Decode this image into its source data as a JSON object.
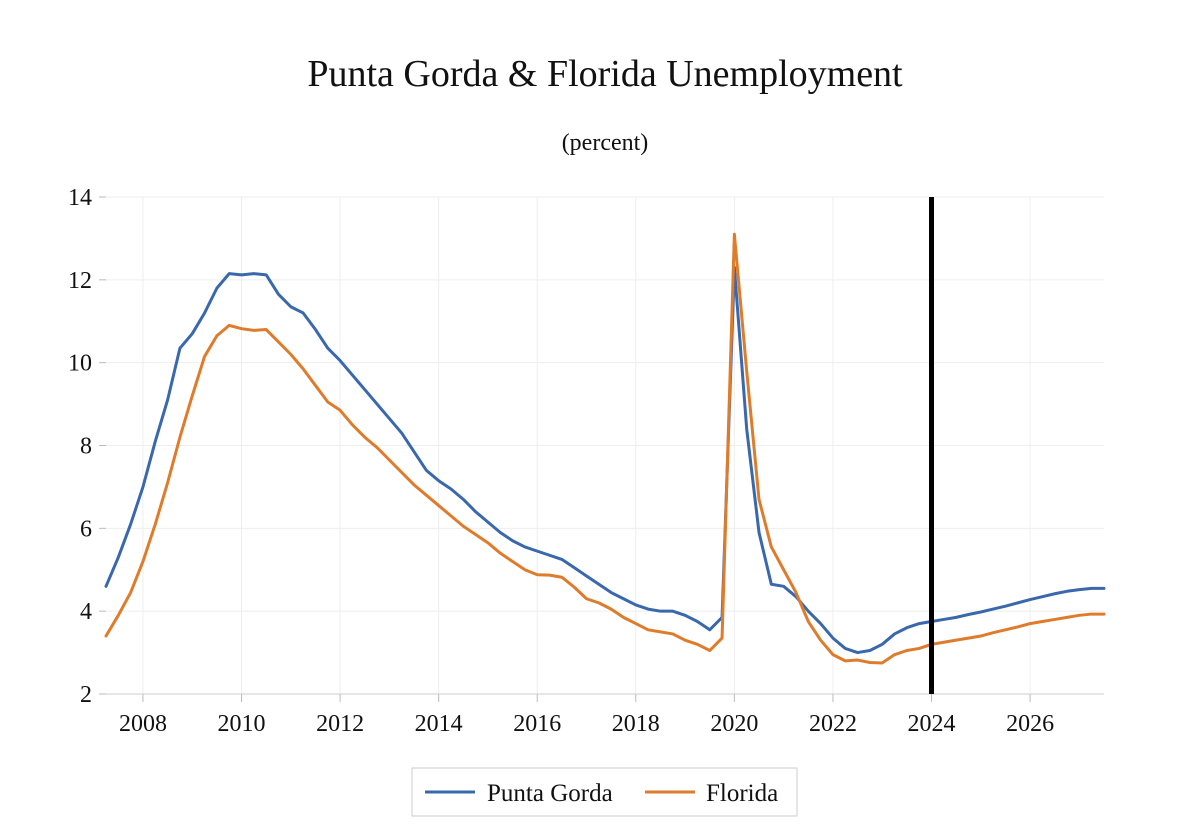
{
  "chart_data": {
    "type": "line",
    "title": "Punta Gorda & Florida Unemployment",
    "subtitle": "(percent)",
    "xlabel": "",
    "ylabel": "",
    "xlim": [
      2007.25,
      2027.5
    ],
    "ylim": [
      2,
      14
    ],
    "y_ticks": [
      2,
      4,
      6,
      8,
      10,
      12,
      14
    ],
    "x_ticks": [
      2008,
      2010,
      2012,
      2014,
      2016,
      2018,
      2020,
      2022,
      2024,
      2026
    ],
    "y_tick_labels": [
      "2",
      "4",
      "6",
      "8",
      "10",
      "12",
      "14"
    ],
    "x_tick_labels": [
      "2008",
      "2010",
      "2012",
      "2014",
      "2016",
      "2018",
      "2020",
      "2022",
      "2024",
      "2026"
    ],
    "grid": true,
    "legend_position": "bottom-center",
    "forecast_marker_x": 2024.0,
    "x": [
      2007.25,
      2007.5,
      2007.75,
      2008.0,
      2008.25,
      2008.5,
      2008.75,
      2009.0,
      2009.25,
      2009.5,
      2009.75,
      2010.0,
      2010.25,
      2010.5,
      2010.75,
      2011.0,
      2011.25,
      2011.5,
      2011.75,
      2012.0,
      2012.25,
      2012.5,
      2012.75,
      2013.0,
      2013.25,
      2013.5,
      2013.75,
      2014.0,
      2014.25,
      2014.5,
      2014.75,
      2015.0,
      2015.25,
      2015.5,
      2015.75,
      2016.0,
      2016.25,
      2016.5,
      2016.75,
      2017.0,
      2017.25,
      2017.5,
      2017.75,
      2018.0,
      2018.25,
      2018.5,
      2018.75,
      2019.0,
      2019.25,
      2019.5,
      2019.75,
      2020.0,
      2020.25,
      2020.5,
      2020.75,
      2021.0,
      2021.25,
      2021.5,
      2021.75,
      2022.0,
      2022.25,
      2022.5,
      2022.75,
      2023.0,
      2023.25,
      2023.5,
      2023.75,
      2024.0,
      2024.25,
      2024.5,
      2024.75,
      2025.0,
      2025.25,
      2025.5,
      2025.75,
      2026.0,
      2026.25,
      2026.5,
      2026.75,
      2027.0,
      2027.25,
      2027.5
    ],
    "series": [
      {
        "name": "Punta Gorda",
        "color": "#3a68ad",
        "values": [
          4.6,
          5.3,
          6.1,
          7.0,
          8.1,
          9.1,
          10.35,
          10.7,
          11.2,
          11.8,
          12.15,
          12.12,
          12.15,
          12.12,
          11.65,
          11.35,
          11.2,
          10.8,
          10.35,
          10.05,
          9.7,
          9.35,
          9.0,
          8.65,
          8.3,
          7.85,
          7.4,
          7.15,
          6.95,
          6.7,
          6.4,
          6.15,
          5.9,
          5.7,
          5.55,
          5.45,
          5.35,
          5.25,
          5.05,
          4.85,
          4.65,
          4.45,
          4.3,
          4.15,
          4.05,
          4.0,
          4.0,
          3.9,
          3.75,
          3.55,
          3.85,
          12.3,
          8.4,
          5.9,
          4.65,
          4.6,
          4.35,
          4.0,
          3.7,
          3.35,
          3.1,
          3.0,
          3.05,
          3.2,
          3.45,
          3.6,
          3.7,
          3.75,
          3.8,
          3.85,
          3.92,
          3.98,
          4.05,
          4.12,
          4.2,
          4.28,
          4.35,
          4.42,
          4.48,
          4.52,
          4.55,
          4.55
        ]
      },
      {
        "name": "Florida",
        "color": "#df7c2c",
        "values": [
          3.4,
          3.9,
          4.45,
          5.2,
          6.1,
          7.1,
          8.2,
          9.2,
          10.15,
          10.65,
          10.9,
          10.82,
          10.78,
          10.8,
          10.5,
          10.2,
          9.85,
          9.45,
          9.05,
          8.85,
          8.5,
          8.2,
          7.95,
          7.65,
          7.35,
          7.05,
          6.8,
          6.55,
          6.3,
          6.05,
          5.85,
          5.65,
          5.4,
          5.2,
          5.0,
          4.88,
          4.87,
          4.82,
          4.58,
          4.3,
          4.2,
          4.05,
          3.85,
          3.7,
          3.55,
          3.5,
          3.45,
          3.3,
          3.2,
          3.05,
          3.35,
          13.1,
          9.8,
          6.7,
          5.55,
          5.0,
          4.45,
          3.75,
          3.3,
          2.95,
          2.8,
          2.82,
          2.76,
          2.75,
          2.95,
          3.05,
          3.1,
          3.2,
          3.25,
          3.3,
          3.35,
          3.4,
          3.48,
          3.55,
          3.62,
          3.7,
          3.75,
          3.8,
          3.85,
          3.9,
          3.93,
          3.93
        ]
      }
    ]
  }
}
